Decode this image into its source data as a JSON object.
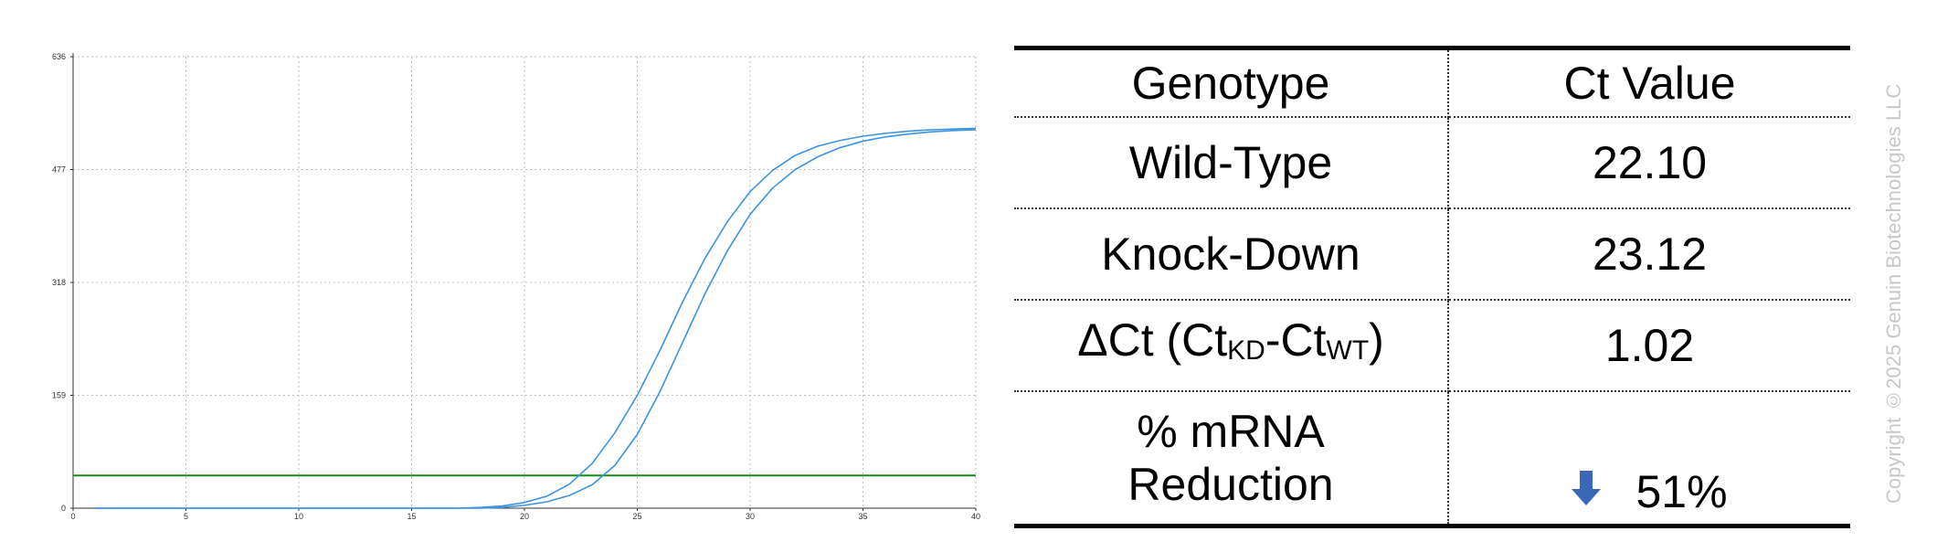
{
  "chart_data": {
    "type": "line",
    "title": "",
    "xlabel": "",
    "ylabel": "",
    "xlim": [
      0,
      40
    ],
    "ylim": [
      0,
      636
    ],
    "x_ticks": [
      0,
      5,
      10,
      15,
      20,
      25,
      30,
      35,
      40
    ],
    "y_ticks": [
      0,
      159,
      318,
      477,
      636
    ],
    "grid": true,
    "threshold": 46,
    "series": [
      {
        "color": "#3a94e0",
        "x": [
          1,
          17,
          18,
          19,
          20,
          21,
          22,
          23,
          24,
          25,
          26,
          27,
          28,
          29,
          30,
          31,
          32,
          33,
          34,
          35,
          36,
          37,
          38,
          39,
          40
        ],
        "y": [
          0,
          0,
          1,
          3,
          8,
          17,
          34,
          63,
          106,
          159,
          222,
          290,
          352,
          404,
          446,
          476,
          497,
          510,
          518,
          524,
          528,
          531,
          533,
          534,
          535
        ]
      },
      {
        "color": "#3a94e0",
        "x": [
          1,
          17,
          18,
          19,
          20,
          21,
          22,
          23,
          24,
          25,
          26,
          27,
          28,
          29,
          30,
          31,
          32,
          33,
          34,
          35,
          36,
          37,
          38,
          39,
          40
        ],
        "y": [
          0,
          0,
          0,
          1,
          4,
          9,
          18,
          33,
          60,
          104,
          164,
          233,
          302,
          363,
          414,
          451,
          477,
          495,
          508,
          517,
          523,
          527,
          530,
          532,
          533
        ]
      }
    ],
    "colors": {
      "threshold": "#1a8a1a",
      "grid": "#bdbdbd",
      "axis": "#333333"
    }
  },
  "table": {
    "headers": [
      "Genotype",
      "Ct Value"
    ],
    "wild_type": {
      "label": "Wild-Type",
      "value": "22.10"
    },
    "knock_down": {
      "label": "Knock-Down",
      "value": "23.12"
    },
    "delta_ct": {
      "label_prefix": "ΔCt (Ct",
      "sub_kd": "KD",
      "label_mid": "-Ct",
      "sub_wt": "WT",
      "label_suffix": ")",
      "value": "1.02"
    },
    "reduction": {
      "label_line1": "% mRNA",
      "label_line2": "Reduction",
      "value": "51%",
      "icon": "down-arrow-icon",
      "icon_color": "#3b67b8"
    }
  },
  "copyright": "Copyright ©2025 Genuin Biotechnologies LLC"
}
